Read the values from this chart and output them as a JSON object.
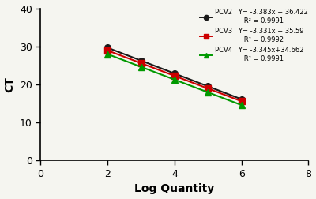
{
  "series": [
    {
      "label": "PCV2",
      "color": "#1a1a1a",
      "marker": "o",
      "markersize": 5.5,
      "slope": -3.383,
      "intercept": 36.422,
      "x": [
        2,
        3,
        4,
        5,
        6
      ],
      "y": [
        29.656,
        26.273,
        22.89,
        19.507,
        16.124
      ],
      "eq_line1": "Y= -3.383x + 36.422",
      "eq_line2": "R² = 0.9991"
    },
    {
      "label": "PCV3",
      "color": "#cc0000",
      "marker": "s",
      "markersize": 5.5,
      "slope": -3.331,
      "intercept": 35.59,
      "x": [
        2,
        3,
        4,
        5,
        6
      ],
      "y": [
        28.928,
        25.597,
        22.266,
        18.935,
        15.604
      ],
      "eq_line1": "Y= -3.331x + 35.59",
      "eq_line2": "R² = 0.9992"
    },
    {
      "label": "PCV4",
      "color": "#009900",
      "marker": "^",
      "markersize": 6,
      "slope": -3.345,
      "intercept": 34.662,
      "x": [
        2,
        3,
        4,
        5,
        6
      ],
      "y": [
        27.972,
        24.627,
        21.282,
        17.937,
        14.592
      ],
      "eq_line1": "Y= -3.345x+34.662",
      "eq_line2": "R² = 0.9991"
    }
  ],
  "xlabel": "Log Quantity",
  "ylabel": "CT",
  "xlim": [
    0,
    8
  ],
  "ylim": [
    0,
    40
  ],
  "xticks": [
    0,
    2,
    4,
    6,
    8
  ],
  "yticks": [
    0,
    10,
    20,
    30,
    40
  ],
  "background_color": "#f5f5f0",
  "axis_fontsize": 10,
  "tick_fontsize": 9
}
